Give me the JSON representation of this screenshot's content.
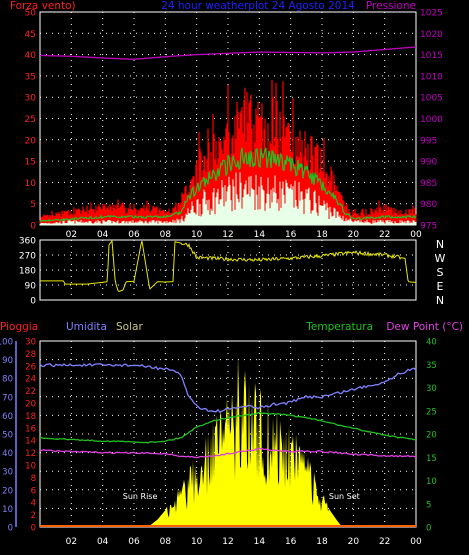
{
  "header": {
    "left": "Forza vento)",
    "center": "24 hour weatherplot   24 Agosto 2014",
    "right": "Pressione"
  },
  "colors": {
    "wind_axis": "#ff2020",
    "pressure": "#c000c0",
    "title": "#2020ff",
    "gust": "#ff0000",
    "avg_wind": "#20c020",
    "wind": "#e8ffe8",
    "direction": "#e8e800",
    "rain": "#ff2020",
    "humidity": "#8080ff",
    "solar": "#ffff00",
    "temperature": "#20c020",
    "dewpoint": "#e040e0",
    "grid": "#ffffff",
    "text": "#ffffff"
  },
  "chart_data": [
    {
      "type": "line",
      "name": "wind_pressure",
      "title": "24 hour weatherplot   24 Agosto 2014",
      "ylabel_left": "Forza vento)",
      "ylabel_right": "Pressione",
      "x_ticks": [
        "02",
        "04",
        "06",
        "08",
        "10",
        "12",
        "14",
        "16",
        "18",
        "20",
        "22",
        "00"
      ],
      "y_left_ticks": [
        "0",
        "5",
        "10",
        "15",
        "20",
        "25",
        "30",
        "35",
        "40",
        "45",
        "50"
      ],
      "y_right_ticks": [
        "975",
        "980",
        "985",
        "990",
        "995",
        "1000",
        "1005",
        "1010",
        "1015",
        "1020",
        "1025"
      ],
      "ylim_left": [
        0,
        50
      ],
      "ylim_right": [
        975,
        1025
      ],
      "xlim_hours": [
        0,
        24
      ],
      "pressure": {
        "hours": [
          0,
          2,
          4,
          6,
          8,
          10,
          12,
          14,
          16,
          18,
          20,
          22,
          24
        ],
        "values": [
          1014.8,
          1014.6,
          1014.2,
          1013.9,
          1014.5,
          1015.0,
          1015.3,
          1015.6,
          1015.5,
          1015.4,
          1015.6,
          1016.2,
          1016.8
        ]
      },
      "wind_gust": {
        "hours": [
          0,
          1,
          2,
          3,
          4,
          5,
          6,
          7,
          8,
          9,
          9.5,
          10,
          11,
          12,
          12.5,
          13,
          13.5,
          14,
          14.5,
          15,
          16,
          17,
          18,
          19,
          19.5,
          20,
          21,
          22,
          23,
          24
        ],
        "values": [
          2,
          3,
          4,
          4,
          5,
          5,
          4,
          5,
          4,
          6,
          13,
          17,
          22,
          27,
          30,
          33,
          31,
          30,
          28,
          28,
          27,
          22,
          18,
          10,
          5,
          3,
          4,
          5,
          4,
          4
        ]
      },
      "wind_avg": {
        "hours": [
          0,
          2,
          4,
          6,
          8,
          9,
          9.5,
          10,
          11,
          12,
          13,
          14,
          15,
          16,
          17,
          18,
          19,
          19.5,
          20,
          22,
          24
        ],
        "values": [
          1,
          1.5,
          2,
          2,
          2,
          3,
          7,
          9,
          12,
          15,
          17,
          17,
          16,
          15,
          13,
          10,
          6,
          3,
          1.5,
          2,
          2
        ]
      },
      "wind": {
        "hours": [
          0,
          2,
          4,
          6,
          8,
          9,
          9.5,
          10,
          11,
          12,
          13,
          14,
          15,
          16,
          17,
          18,
          19,
          20,
          22,
          24
        ],
        "values": [
          0.5,
          1,
          1,
          1,
          1,
          1.5,
          4,
          6,
          8,
          10,
          11,
          11,
          10,
          9,
          8,
          6,
          3,
          1,
          1,
          1
        ]
      }
    },
    {
      "type": "line",
      "name": "wind_direction",
      "y_left_ticks": [
        "0",
        "90",
        "180",
        "270",
        "360"
      ],
      "y_right_labels": [
        "N",
        "W",
        "S",
        "E",
        "N"
      ],
      "ylim": [
        0,
        360
      ],
      "direction": {
        "hours": [
          0,
          1.5,
          1.6,
          3,
          4.3,
          4.4,
          4.6,
          4.8,
          5.0,
          5.3,
          5.5,
          6.0,
          6.5,
          7.0,
          7.5,
          8.0,
          8.5,
          8.6,
          9.5,
          10,
          12,
          14,
          16,
          18,
          20,
          22,
          23.3,
          23.5,
          24
        ],
        "values": [
          115,
          115,
          95,
          95,
          110,
          330,
          355,
          110,
          50,
          60,
          110,
          112,
          360,
          65,
          110,
          108,
          110,
          350,
          330,
          255,
          245,
          240,
          250,
          265,
          285,
          270,
          250,
          110,
          105
        ]
      }
    },
    {
      "type": "line",
      "name": "weather_multi",
      "series_labels": [
        "Pioggia",
        "Umidita",
        "Solar",
        "Temperatura",
        "Dew Point (°C)"
      ],
      "y_rain_ticks": [
        "0",
        "2",
        "4",
        "6",
        "8",
        "10",
        "12",
        "14",
        "16",
        "18",
        "20",
        "22",
        "24",
        "26",
        "28",
        "30"
      ],
      "y_humidity_ticks": [
        "0",
        "10",
        "20",
        "30",
        "40",
        "50",
        "60",
        "70",
        "80",
        "90",
        "100"
      ],
      "y_right_ticks": [
        "0",
        "5",
        "10",
        "15",
        "20",
        "25",
        "30",
        "35",
        "40"
      ],
      "ylim_humidity": [
        0,
        100
      ],
      "ylim_temperature": [
        0,
        40
      ],
      "ylim_solar": [
        0,
        1000
      ],
      "annotations": [
        "Sun Rise",
        "Sun Set"
      ],
      "sunrise_hour": 6.9,
      "sunset_hour": 19.3,
      "humidity": {
        "hours": [
          0,
          2,
          4,
          6,
          7,
          8,
          9,
          9.5,
          10,
          11,
          12,
          13,
          14,
          15,
          16,
          17,
          18,
          19,
          20,
          21,
          22,
          23,
          24
        ],
        "values": [
          87,
          87,
          87,
          87,
          86,
          85,
          82,
          70,
          65,
          62,
          63,
          65,
          64,
          66,
          67,
          70,
          70,
          72,
          74,
          76,
          78,
          83,
          85
        ]
      },
      "temperature": {
        "hours": [
          0,
          2,
          4,
          6,
          7,
          8,
          9,
          10,
          11,
          12,
          13,
          14,
          15,
          16,
          17,
          18,
          19,
          20,
          21,
          22,
          23,
          24
        ],
        "values": [
          19.2,
          18.8,
          18.5,
          18.3,
          18.2,
          18.5,
          19.2,
          21.5,
          22.8,
          23.5,
          24.0,
          24.5,
          24.3,
          24.0,
          23.5,
          22.8,
          22.0,
          21.2,
          20.5,
          19.8,
          19.2,
          18.8
        ]
      },
      "dewpoint": {
        "hours": [
          0,
          2,
          4,
          6,
          8,
          9,
          10,
          11,
          12,
          13,
          14,
          15,
          16,
          17,
          18,
          19,
          20,
          22,
          24
        ],
        "values": [
          16.5,
          16.2,
          16.0,
          15.9,
          15.8,
          15.2,
          15.0,
          15.2,
          15.8,
          16.3,
          16.8,
          16.5,
          16.2,
          16.4,
          16.2,
          16.0,
          15.6,
          15.3,
          15.2
        ]
      },
      "solar": {
        "hours": [
          6.9,
          7.5,
          8,
          8.5,
          9,
          9.5,
          10,
          10.5,
          11,
          11.5,
          12,
          12.5,
          13,
          13.5,
          14,
          14.5,
          15,
          15.5,
          16,
          16.5,
          17,
          17.5,
          18,
          18.5,
          19,
          19.3
        ],
        "values": [
          0,
          40,
          90,
          140,
          210,
          280,
          350,
          430,
          500,
          560,
          620,
          700,
          760,
          700,
          650,
          620,
          580,
          540,
          480,
          430,
          350,
          260,
          170,
          90,
          30,
          0
        ]
      },
      "rain": {
        "hours": [
          0,
          24
        ],
        "values": [
          0,
          0
        ]
      }
    }
  ]
}
